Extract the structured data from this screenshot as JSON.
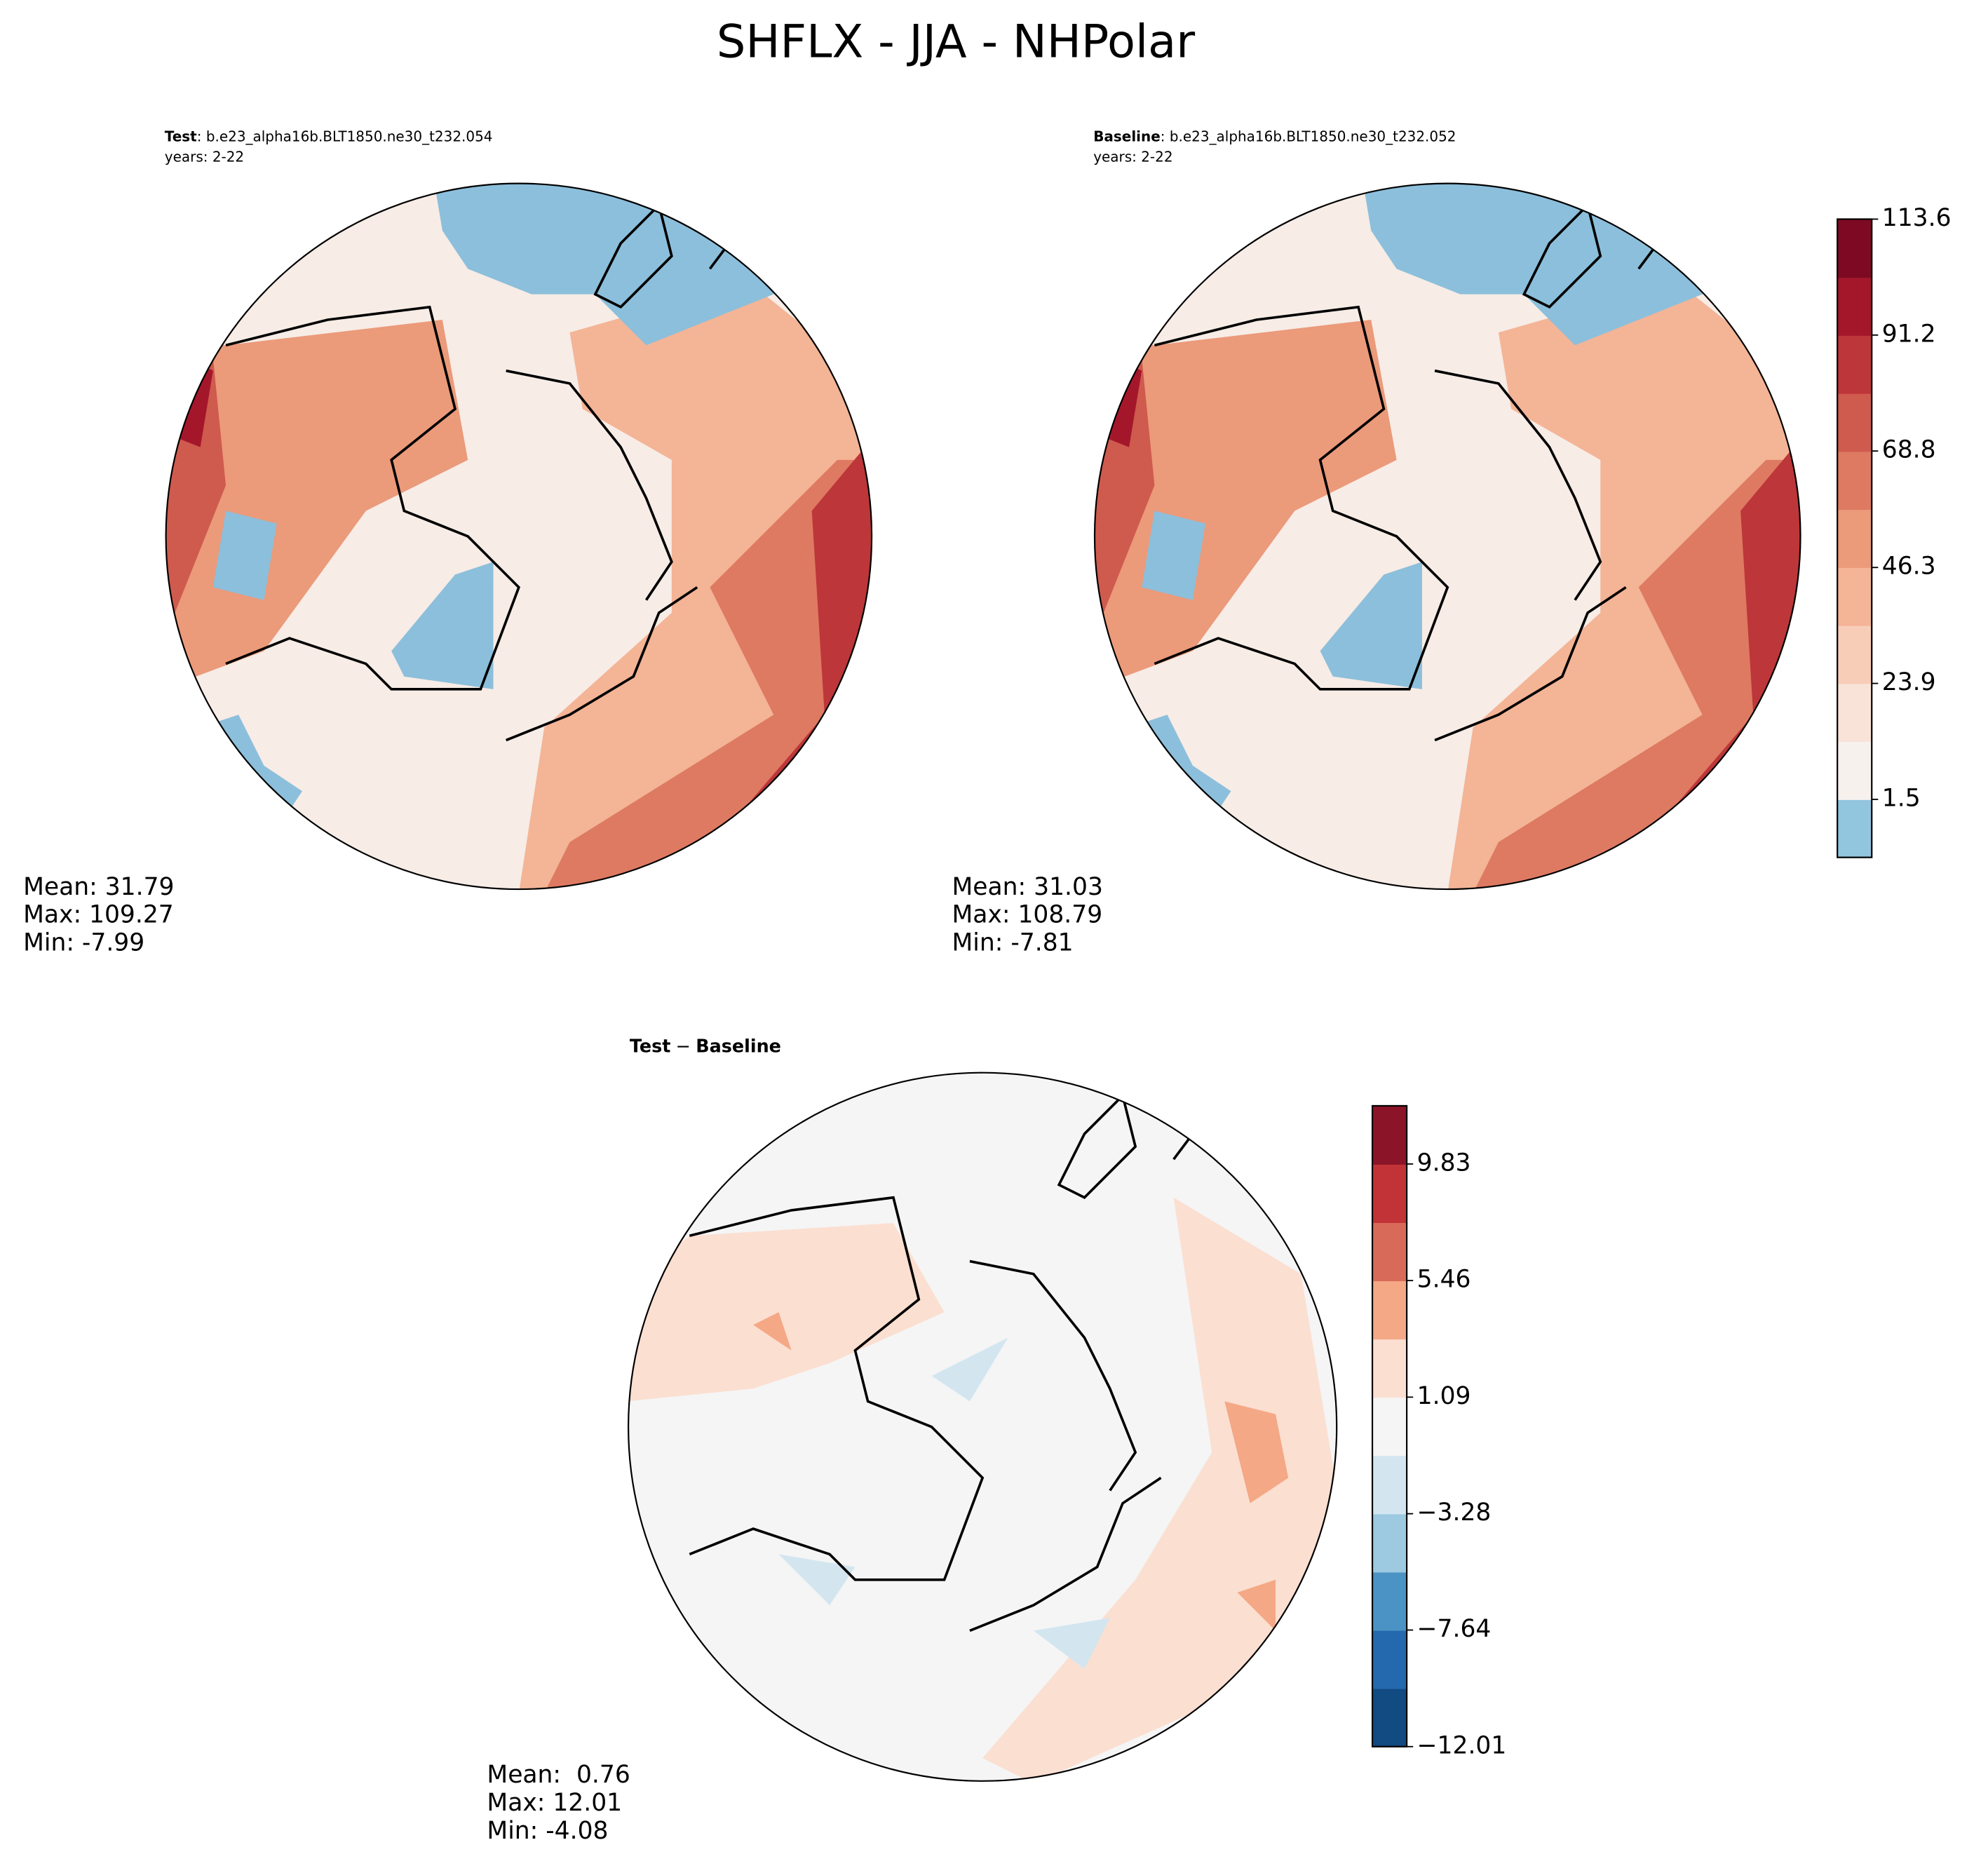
{
  "title": "SHFLX - JJA - NHPolar",
  "panels": [
    {
      "label": "Test",
      "case": ": b.e23_alpha16b.BLT1850.ne30_t232.054",
      "years": "years: 2-22",
      "stats": [
        "Mean: 31.79",
        "Max: 109.27",
        "Min: -7.99"
      ]
    },
    {
      "label": "Baseline",
      "case": ": b.e23_alpha16b.BLT1850.ne30_t232.052",
      "years": "years: 2-22",
      "stats": [
        "Mean: 31.03",
        "Max: 108.79",
        "Min: -7.81"
      ]
    },
    {
      "label": "Test",
      "operator": "−",
      "label2": "Baseline",
      "stats": [
        "Mean:  0.76",
        "Max: 12.01",
        "Min: -4.08"
      ]
    }
  ],
  "colorbars": [
    {
      "lim": [
        -9.71,
        113.6
      ],
      "ticks": [
        113.6,
        91.2,
        68.8,
        46.3,
        23.9,
        1.5
      ],
      "colors": [
        "#92c5de",
        "#f7f1ee",
        "#f9e3d8",
        "#f8cdb8",
        "#f4b496",
        "#eb9a7a",
        "#de7a62",
        "#cf5a4e",
        "#bd3639",
        "#a4172b",
        "#7d0a22"
      ]
    },
    {
      "lim": [
        -12.01,
        12.01
      ],
      "ticks": [
        9.83,
        5.46,
        1.09,
        {
          "value": -3.28,
          "label": "−3.28"
        },
        {
          "value": -7.64,
          "label": "−7.64"
        },
        {
          "value": -12.01,
          "label": "−12.01"
        }
      ],
      "colors": [
        "#124a82",
        "#2469ad",
        "#4b93c4",
        "#9dcae1",
        "#d3e6f0",
        "#f5f5f5",
        "#fbdfd1",
        "#f4a886",
        "#d86a59",
        "#c23337",
        "#8b1428"
      ]
    }
  ]
}
